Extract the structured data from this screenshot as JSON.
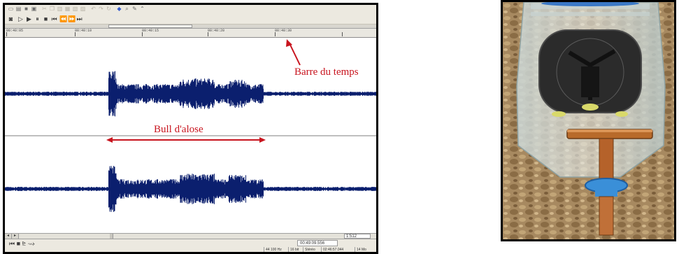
{
  "editor": {
    "ruler_ticks": [
      "00:40:05",
      "00:40:10",
      "00:40:15",
      "00:40:20",
      "00:40:30"
    ],
    "annotations": {
      "time_bar": "Barre du temps",
      "bull": "Bull d'alose"
    },
    "time_display": "00:49:09.556",
    "zoom": "1:512",
    "status": {
      "sample_rate": "44 100 Hz",
      "bit_depth": "16 bit",
      "channels": "Stéréo",
      "duration": "02:46:57.044",
      "file_size": "14 Mo"
    }
  },
  "colors": {
    "waveform": "#0b1f6e",
    "annotation": "#c8141e",
    "toolbar_bg": "#ece9e0"
  },
  "photo": {
    "subject": "hydrophone made from a water bottle with foam disc and copper stake"
  }
}
